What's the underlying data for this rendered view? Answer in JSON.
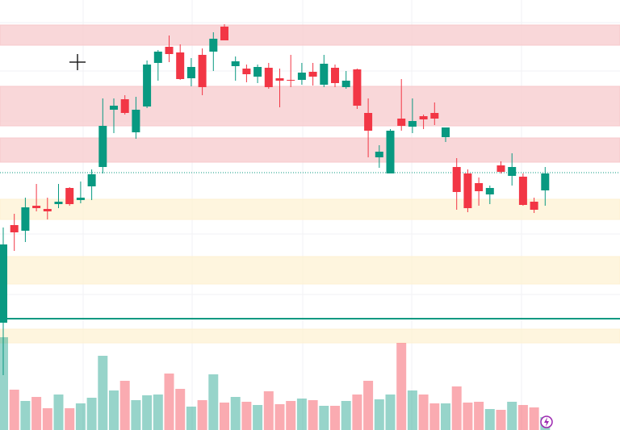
{
  "chart_data": {
    "type": "candlestick",
    "open": [
      133,
      254,
      247,
      278,
      274,
      280,
      300,
      285,
      302,
      326,
      397,
      410,
      369,
      401,
      455,
      475,
      468,
      436,
      465,
      469,
      500,
      451,
      448,
      438,
      449,
      436,
      434,
      434,
      444,
      428,
      449,
      425,
      447,
      393,
      338,
      318,
      386,
      376,
      389,
      393,
      363,
      326,
      318,
      306,
      292,
      328,
      315,
      314,
      283,
      297
    ],
    "high": [
      251,
      268,
      288,
      305,
      288,
      305,
      301,
      308,
      323,
      411,
      411,
      415,
      413,
      458,
      471,
      489,
      478,
      461,
      473,
      493,
      503,
      463,
      453,
      453,
      455,
      448,
      465,
      455,
      455,
      465,
      453,
      445,
      448,
      411,
      353,
      373,
      435,
      411,
      391,
      406,
      373,
      337,
      323,
      313,
      303,
      333,
      343,
      318,
      288,
      326
    ],
    "low": [
      68,
      222,
      233,
      271,
      261,
      275,
      278,
      281,
      285,
      318,
      368,
      391,
      361,
      399,
      433,
      456,
      434,
      426,
      415,
      445,
      483,
      433,
      431,
      430,
      423,
      400,
      425,
      428,
      427,
      425,
      425,
      423,
      398,
      338,
      325,
      318,
      371,
      368,
      373,
      378,
      357,
      273,
      270,
      278,
      280,
      318,
      303,
      278,
      269,
      278
    ],
    "close": [
      230,
      245,
      276,
      275,
      271,
      283,
      280,
      288,
      317,
      377,
      402,
      393,
      397,
      453,
      469,
      466,
      435,
      450,
      425,
      485,
      483,
      457,
      441,
      450,
      425,
      433,
      433,
      443,
      438,
      454,
      430,
      433,
      402,
      371,
      345,
      371,
      377,
      383,
      385,
      386,
      375,
      295,
      275,
      296,
      300,
      320,
      326,
      279,
      273,
      318
    ],
    "volume": [
      115,
      50,
      36,
      41,
      27,
      44,
      27,
      33,
      40,
      92,
      49,
      61,
      37,
      43,
      44,
      70,
      51,
      29,
      37,
      69,
      34,
      41,
      35,
      31,
      48,
      32,
      36,
      39,
      37,
      30,
      30,
      36,
      44,
      61,
      38,
      44,
      108,
      49,
      44,
      33,
      33,
      54,
      34,
      35,
      26,
      25,
      35,
      31,
      28,
      16
    ],
    "up_color": "#089981",
    "down_color": "#f23645",
    "ylim": [
      60,
      533
    ],
    "volume_lim": [
      0,
      115
    ],
    "zones": [
      {
        "low": 477,
        "high": 502,
        "color": "#f7c9cc"
      },
      {
        "low": 377,
        "high": 426,
        "color": "#f7c9cc"
      },
      {
        "low": 332,
        "high": 362,
        "color": "#f7c9cc"
      },
      {
        "low": 261,
        "high": 286,
        "color": "#fdf1d3"
      },
      {
        "low": 181,
        "high": 215,
        "color": "#fdf1d3"
      },
      {
        "low": 108,
        "high": 125,
        "color": "#fdf1d3"
      }
    ],
    "lines": [
      {
        "value": 319,
        "color": "#089981",
        "style": "dotted"
      },
      {
        "value": 138,
        "color": "#089981",
        "style": "solid"
      }
    ]
  }
}
